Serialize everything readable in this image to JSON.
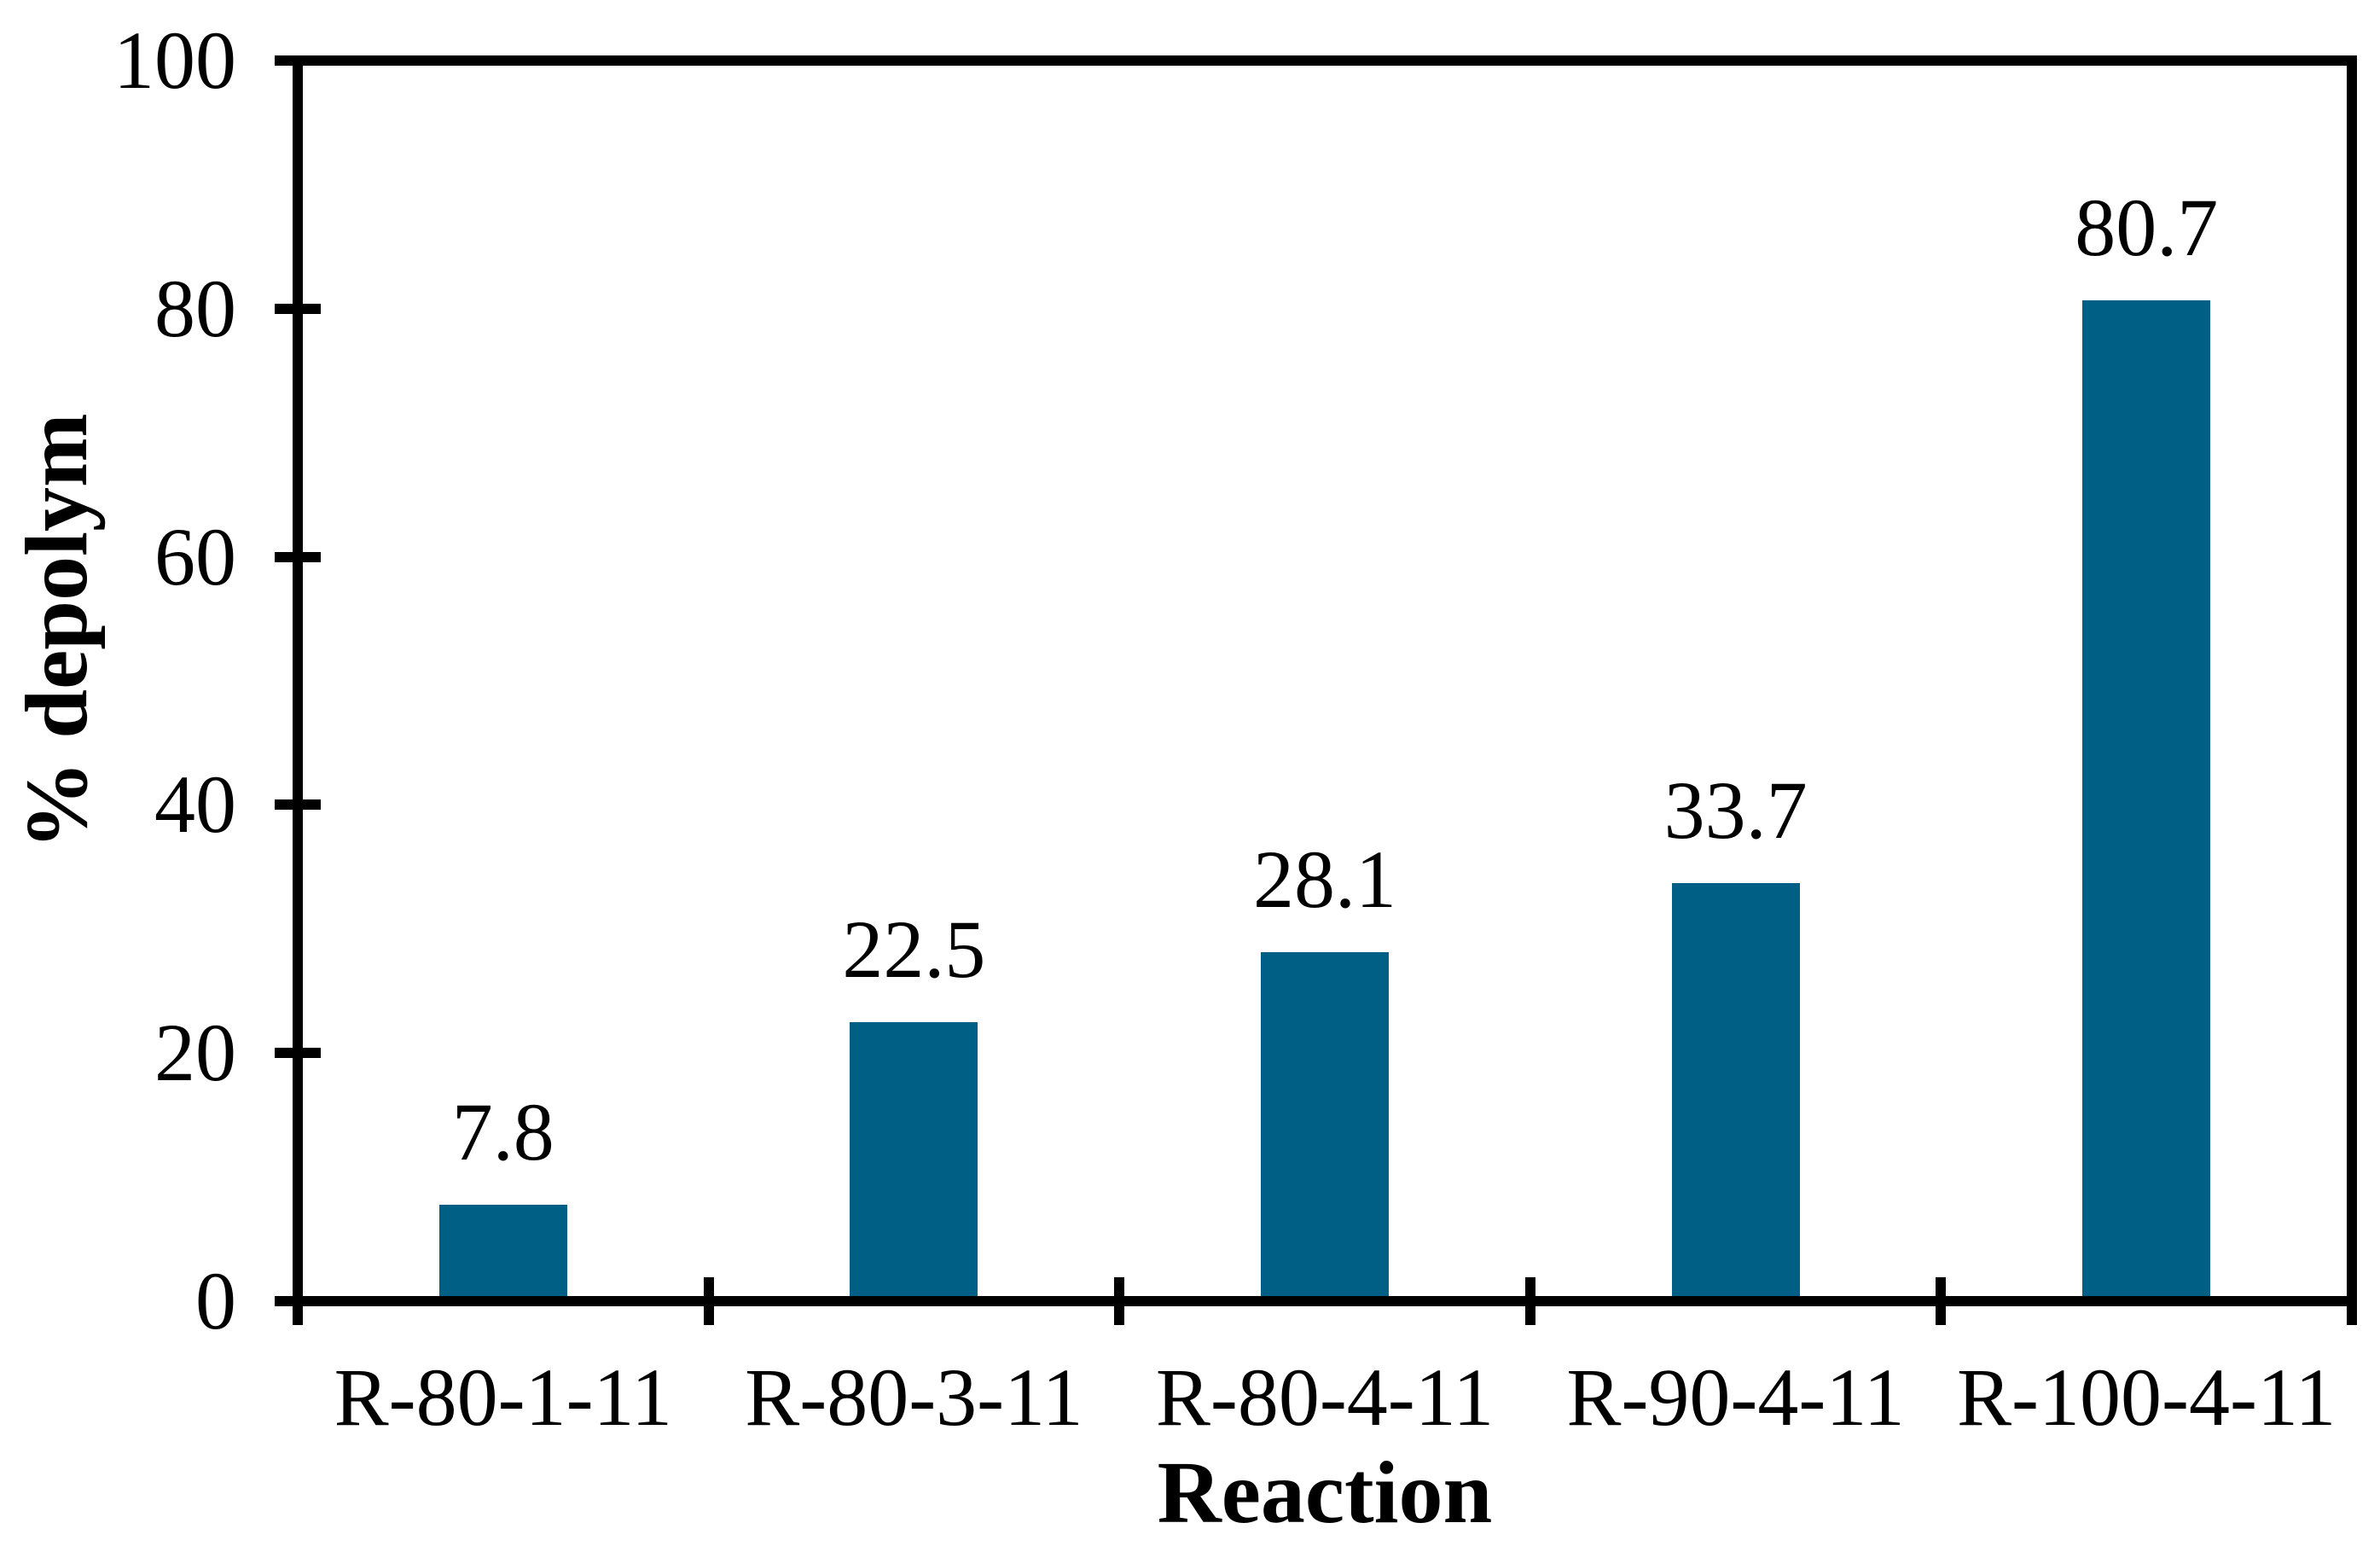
{
  "chart_data": {
    "type": "bar",
    "title": "",
    "categories": [
      "R-80-1-11",
      "R-80-3-11",
      "R-80-4-11",
      "R-90-4-11",
      "R-100-4-11"
    ],
    "values": [
      7.8,
      22.5,
      28.1,
      33.7,
      80.7
    ],
    "value_labels": [
      "7.8",
      "22.5",
      "28.1",
      "33.7",
      "80.7"
    ],
    "xlabel": "Reaction",
    "ylabel": "% depolym",
    "ylim": [
      0,
      100
    ],
    "y_ticks": [
      0,
      20,
      40,
      60,
      80,
      100
    ],
    "grid": false,
    "legend": "none",
    "data_labels_position": "above-bar",
    "bar_color": "#005F84",
    "axis_color": "#000000",
    "text_color": "#000000",
    "background_color": "#FFFFFF"
  }
}
